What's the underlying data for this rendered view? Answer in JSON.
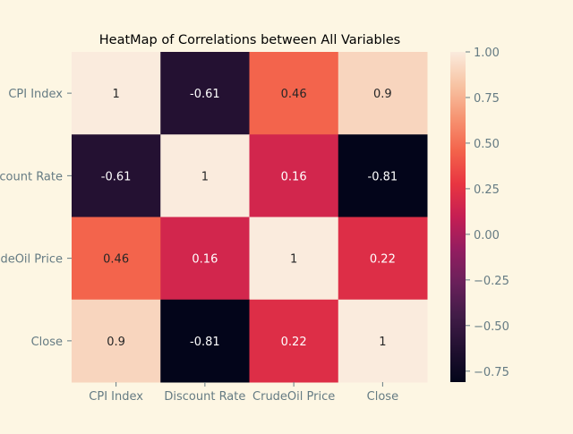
{
  "chart_data": {
    "type": "heatmap",
    "title": "HeatMap of Correlations between All Variables",
    "row_labels": [
      "CPI Index",
      "Discount Rate",
      "CrudeOil Price",
      "Close"
    ],
    "col_labels": [
      "CPI Index",
      "Discount Rate",
      "CrudeOil Price",
      "Close"
    ],
    "values": [
      [
        1,
        -0.61,
        0.46,
        0.9
      ],
      [
        -0.61,
        1,
        0.16,
        -0.81
      ],
      [
        0.46,
        0.16,
        1,
        0.22
      ],
      [
        0.9,
        -0.81,
        0.22,
        1
      ]
    ],
    "annotations": [
      [
        "1",
        "-0.61",
        "0.46",
        "0.9"
      ],
      [
        "-0.61",
        "1",
        "0.16",
        "-0.81"
      ],
      [
        "0.46",
        "0.16",
        "1",
        "0.22"
      ],
      [
        "0.9",
        "-0.81",
        "0.22",
        "1"
      ]
    ],
    "colorbar": {
      "vmin": -0.81,
      "vmax": 1.0,
      "ticks": [
        1.0,
        0.75,
        0.5,
        0.25,
        0.0,
        -0.25,
        -0.5,
        -0.75
      ],
      "tick_labels": [
        "1.00",
        "0.75",
        "0.50",
        "0.25",
        "0.00",
        "−0.25",
        "−0.50",
        "−0.75"
      ],
      "colormap": "rocket"
    },
    "colors": {
      "background": "#fdf6e3",
      "tick_text": "#657b83",
      "title_text": "#000000",
      "dark_annotation": "#262626",
      "light_annotation": "#ffffff"
    }
  }
}
